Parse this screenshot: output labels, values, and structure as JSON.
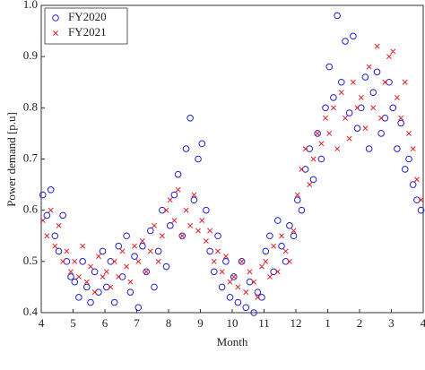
{
  "chart_data": {
    "type": "scatter",
    "x_label": "Month",
    "y_label": "Power demand [p.u]",
    "xlim": [
      4,
      16
    ],
    "xticks": [
      4,
      5,
      6,
      7,
      8,
      9,
      10,
      11,
      12,
      {
        "value": 13,
        "label": "1"
      },
      {
        "value": 14,
        "label": "2"
      },
      {
        "value": 15,
        "label": "3"
      },
      {
        "value": 16,
        "label": "4"
      }
    ],
    "ylim": [
      0.4,
      1
    ],
    "yticks": [
      0.4,
      0.5,
      0.6,
      0.7,
      0.8,
      0.9,
      {
        "value": 1,
        "label": "1.0"
      }
    ],
    "legend": "upper left",
    "x": [
      4.05,
      4.18,
      4.3,
      4.43,
      4.55,
      4.68,
      4.8,
      4.93,
      5.05,
      5.18,
      5.3,
      5.43,
      5.55,
      5.68,
      5.8,
      5.93,
      6.05,
      6.18,
      6.3,
      6.43,
      6.55,
      6.68,
      6.8,
      6.93,
      7.05,
      7.18,
      7.3,
      7.43,
      7.55,
      7.68,
      7.8,
      7.93,
      8.05,
      8.18,
      8.3,
      8.43,
      8.55,
      8.68,
      8.8,
      8.93,
      9.05,
      9.18,
      9.3,
      9.43,
      9.55,
      9.68,
      9.8,
      9.93,
      10.05,
      10.18,
      10.3,
      10.43,
      10.55,
      10.68,
      10.8,
      10.93,
      11.05,
      11.18,
      11.3,
      11.43,
      11.55,
      11.68,
      11.8,
      11.93,
      12.05,
      12.18,
      12.3,
      12.43,
      12.55,
      12.68,
      12.8,
      12.93,
      13.05,
      13.18,
      13.3,
      13.43,
      13.55,
      13.68,
      13.8,
      13.93,
      14.05,
      14.18,
      14.3,
      14.43,
      14.55,
      14.68,
      14.8,
      14.93,
      15.05,
      15.18,
      15.3,
      15.43,
      15.55,
      15.68,
      15.8,
      15.93
    ],
    "series": [
      {
        "name": "FY2020",
        "color": "#1f1fd0",
        "marker": "o",
        "values": [
          0.63,
          0.59,
          0.64,
          0.55,
          0.52,
          0.59,
          0.5,
          0.47,
          0.46,
          0.43,
          0.5,
          0.45,
          0.42,
          0.48,
          0.44,
          0.52,
          0.45,
          0.5,
          0.42,
          0.53,
          0.47,
          0.55,
          0.44,
          0.51,
          0.41,
          0.53,
          0.48,
          0.56,
          0.45,
          0.52,
          0.6,
          0.49,
          0.57,
          0.63,
          0.67,
          0.55,
          0.72,
          0.78,
          0.62,
          0.7,
          0.73,
          0.6,
          0.52,
          0.48,
          0.55,
          0.45,
          0.5,
          0.43,
          0.47,
          0.42,
          0.5,
          0.41,
          0.46,
          0.4,
          0.44,
          0.43,
          0.52,
          0.55,
          0.48,
          0.58,
          0.53,
          0.5,
          0.57,
          0.55,
          0.62,
          0.6,
          0.68,
          0.72,
          0.66,
          0.75,
          0.7,
          0.8,
          0.88,
          0.82,
          0.98,
          0.85,
          0.93,
          0.79,
          0.94,
          0.76,
          0.8,
          0.86,
          0.72,
          0.83,
          0.87,
          0.75,
          0.78,
          0.85,
          0.8,
          0.72,
          0.77,
          0.68,
          0.7,
          0.65,
          0.62,
          0.6
        ]
      },
      {
        "name": "FY2021",
        "color": "#e0202a",
        "marker": "x",
        "values": [
          0.58,
          0.55,
          0.6,
          0.53,
          0.57,
          0.5,
          0.52,
          0.48,
          0.5,
          0.47,
          0.53,
          0.46,
          0.49,
          0.44,
          0.51,
          0.47,
          0.48,
          0.45,
          0.5,
          0.47,
          0.52,
          0.49,
          0.46,
          0.53,
          0.5,
          0.54,
          0.48,
          0.52,
          0.57,
          0.5,
          0.55,
          0.6,
          0.62,
          0.58,
          0.64,
          0.55,
          0.6,
          0.57,
          0.63,
          0.56,
          0.58,
          0.54,
          0.56,
          0.5,
          0.52,
          0.48,
          0.51,
          0.46,
          0.47,
          0.45,
          0.5,
          0.44,
          0.48,
          0.46,
          0.43,
          0.49,
          0.5,
          0.47,
          0.53,
          0.48,
          0.55,
          0.52,
          0.5,
          0.56,
          0.63,
          0.68,
          0.72,
          0.65,
          0.7,
          0.75,
          0.73,
          0.78,
          0.75,
          0.8,
          0.72,
          0.83,
          0.78,
          0.74,
          0.85,
          0.8,
          0.82,
          0.76,
          0.88,
          0.8,
          0.92,
          0.78,
          0.85,
          0.9,
          0.91,
          0.82,
          0.78,
          0.85,
          0.75,
          0.72,
          0.66,
          0.62
        ]
      }
    ]
  }
}
